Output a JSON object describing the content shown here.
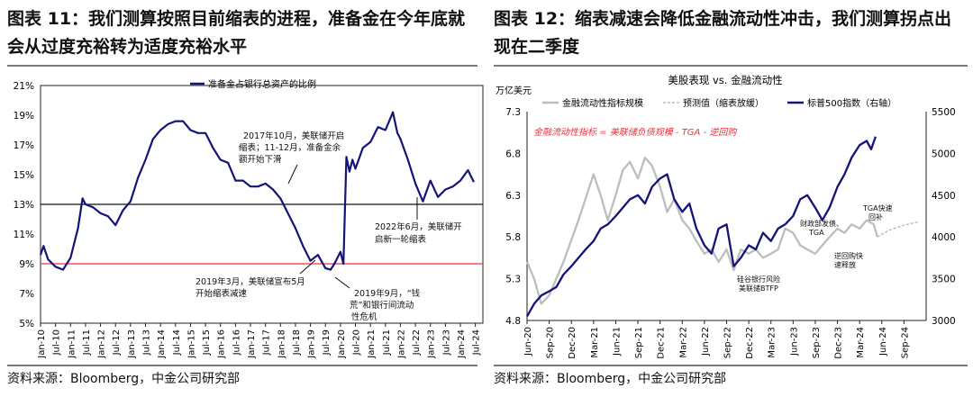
{
  "colors": {
    "navy": "#141478",
    "gray": "#bdbdbd",
    "red": "#e8343c",
    "black": "#111111"
  },
  "left": {
    "title": "图表 11：我们测算按照目前缩表的进程，准备金在今年底就会从过度充裕转为适度充裕水平",
    "source": "资料来源：Bloomberg，中金公司研究部",
    "chart_data": {
      "type": "line",
      "legend": "准备金占银行总资产的比例",
      "legend_position": "top-center",
      "ylim": [
        5,
        21
      ],
      "y_ticks": [
        "5%",
        "7%",
        "9%",
        "11%",
        "13%",
        "15%",
        "17%",
        "19%",
        "21%"
      ],
      "x_ticks": [
        "Jan-10",
        "Jul-10",
        "Jan-11",
        "Jul-11",
        "Jan-12",
        "Jul-12",
        "Jan-13",
        "Jul-13",
        "Jan-14",
        "Jul-14",
        "Jan-15",
        "Jul-15",
        "Jan-16",
        "Jul-16",
        "Jan-17",
        "Jul-17",
        "Jan-18",
        "Jul-18",
        "Jan-19",
        "Jul-19",
        "Jan-20",
        "Jul-20",
        "Jan-21",
        "Jul-21",
        "Jan-22",
        "Jul-22",
        "Jan-23",
        "Jul-23",
        "Jan-24",
        "Jul-24"
      ],
      "reference_lines": [
        {
          "y": 13,
          "color": "#111111"
        },
        {
          "y": 9,
          "color": "#e8343c"
        }
      ],
      "series": [
        {
          "name": "准备金占银行总资产的比例",
          "x": [
            2010.0,
            2010.1,
            2010.25,
            2010.5,
            2010.75,
            2011.0,
            2011.25,
            2011.4,
            2011.5,
            2011.75,
            2012.0,
            2012.25,
            2012.5,
            2012.75,
            2013.0,
            2013.25,
            2013.5,
            2013.75,
            2014.0,
            2014.25,
            2014.5,
            2014.75,
            2015.0,
            2015.25,
            2015.5,
            2015.75,
            2016.0,
            2016.25,
            2016.5,
            2016.75,
            2017.0,
            2017.25,
            2017.5,
            2017.75,
            2018.0,
            2018.25,
            2018.5,
            2018.75,
            2019.0,
            2019.25,
            2019.5,
            2019.67,
            2019.8,
            2020.0,
            2020.1,
            2020.2,
            2020.3,
            2020.4,
            2020.5,
            2020.75,
            2021.0,
            2021.25,
            2021.5,
            2021.75,
            2021.9,
            2022.0,
            2022.25,
            2022.5,
            2022.75,
            2023.0,
            2023.25,
            2023.5,
            2023.75,
            2024.0,
            2024.25,
            2024.45
          ],
          "values": [
            9.6,
            10.2,
            9.3,
            8.8,
            8.6,
            9.4,
            11.4,
            13.4,
            13.0,
            12.8,
            12.4,
            12.2,
            11.6,
            12.6,
            13.2,
            14.8,
            16.0,
            17.4,
            18.0,
            18.4,
            18.6,
            18.6,
            18.0,
            17.8,
            17.8,
            16.8,
            16.0,
            15.8,
            14.6,
            14.6,
            14.2,
            14.2,
            14.4,
            14.0,
            13.4,
            12.4,
            11.4,
            10.2,
            9.2,
            9.6,
            8.7,
            8.6,
            9.0,
            9.8,
            9.0,
            16.2,
            15.2,
            16.0,
            15.4,
            16.8,
            17.2,
            18.2,
            18.0,
            19.2,
            17.8,
            17.4,
            16.0,
            14.4,
            13.2,
            14.6,
            13.5,
            14.0,
            14.2,
            14.6,
            15.3,
            14.5
          ]
        }
      ],
      "annotations": [
        {
          "lines": [
            "2017年10月，美联储开启",
            "缩表；11-12月，准备金余",
            "额开始下滑"
          ]
        },
        {
          "lines": [
            "2022年6月，美联储开",
            "启新一轮缩表"
          ]
        },
        {
          "lines": [
            "2019年3月，美联储宣布5月",
            "开始缩表减速"
          ]
        },
        {
          "lines": [
            "2019年9月，“钱",
            "荒”和银行间流动",
            "性危机"
          ]
        }
      ]
    }
  },
  "right": {
    "title": "图表 12：缩表减速会降低金融流动性冲击，我们测算拐点出现在二季度",
    "source": "资料来源：Bloomberg，中金公司研究部",
    "chart_data": {
      "type": "line",
      "title": "美股表现 vs. 金融流动性",
      "ylabel": "万亿美元",
      "ylim": [
        4.8,
        7.3
      ],
      "y2lim": [
        3000,
        5500
      ],
      "y_ticks": [
        "4.8",
        "5.3",
        "5.8",
        "6.3",
        "6.8",
        "7.3"
      ],
      "y2_ticks": [
        "3000",
        "3500",
        "4000",
        "4500",
        "5000",
        "5500"
      ],
      "x_ticks": [
        "Jun-20",
        "Sep-20",
        "Dec-20",
        "Mar-21",
        "Jun-21",
        "Sep-21",
        "Dec-21",
        "Mar-22",
        "Jun-22",
        "Sep-22",
        "Dec-22",
        "Mar-23",
        "Jun-23",
        "Sep-23",
        "Dec-23",
        "Mar-24",
        "Jun-24",
        "Sep-24"
      ],
      "legend_position": "top",
      "formula": "金融流动性指标 = 美联储负债规模 - TGA - 逆回购",
      "series": [
        {
          "name": "金融流动性指标规模",
          "axis": "left",
          "color": "#bdbdbd",
          "x": [
            2020.42,
            2020.5,
            2020.58,
            2020.67,
            2020.75,
            2020.83,
            2021.0,
            2021.17,
            2021.25,
            2021.33,
            2021.42,
            2021.5,
            2021.58,
            2021.67,
            2021.75,
            2021.83,
            2021.92,
            2022.0,
            2022.08,
            2022.17,
            2022.25,
            2022.33,
            2022.42,
            2022.5,
            2022.58,
            2022.67,
            2022.75,
            2022.83,
            2022.92,
            2023.0,
            2023.08,
            2023.17,
            2023.25,
            2023.33,
            2023.42,
            2023.5,
            2023.58,
            2023.67,
            2023.75,
            2023.83,
            2023.92,
            2024.0,
            2024.08,
            2024.17,
            2024.25,
            2024.33,
            2024.37
          ],
          "values": [
            5.5,
            5.3,
            5.0,
            5.1,
            5.3,
            5.5,
            6.0,
            6.55,
            6.3,
            6.0,
            6.3,
            6.6,
            6.7,
            6.5,
            6.75,
            6.65,
            6.4,
            6.1,
            6.25,
            6.0,
            5.9,
            5.75,
            5.6,
            5.65,
            5.5,
            5.65,
            5.4,
            5.65,
            5.6,
            5.65,
            5.55,
            5.6,
            5.65,
            5.9,
            5.85,
            5.7,
            5.65,
            5.6,
            5.7,
            5.8,
            5.9,
            5.85,
            5.95,
            5.9,
            6.0,
            5.95,
            5.8
          ]
        },
        {
          "name": "预测值（缩表放缓）",
          "axis": "left",
          "color": "#bdbdbd",
          "dashed": true,
          "x": [
            2024.37,
            2024.5,
            2024.67,
            2024.83
          ],
          "values": [
            5.8,
            5.88,
            5.94,
            5.98
          ]
        },
        {
          "name": "标普500指数（右轴）",
          "axis": "right",
          "color": "#141478",
          "x": [
            2020.42,
            2020.5,
            2020.58,
            2020.67,
            2020.75,
            2020.83,
            2020.92,
            2021.0,
            2021.08,
            2021.17,
            2021.25,
            2021.33,
            2021.42,
            2021.5,
            2021.58,
            2021.67,
            2021.75,
            2021.83,
            2021.92,
            2022.0,
            2022.08,
            2022.17,
            2022.25,
            2022.33,
            2022.42,
            2022.5,
            2022.58,
            2022.67,
            2022.75,
            2022.83,
            2022.92,
            2023.0,
            2023.08,
            2023.17,
            2023.25,
            2023.33,
            2023.42,
            2023.5,
            2023.58,
            2023.67,
            2023.75,
            2023.83,
            2023.92,
            2024.0,
            2024.08,
            2024.17,
            2024.25,
            2024.3,
            2024.35
          ],
          "values": [
            3050,
            3200,
            3300,
            3350,
            3400,
            3550,
            3650,
            3750,
            3850,
            3950,
            4100,
            4150,
            4250,
            4350,
            4450,
            4500,
            4400,
            4600,
            4700,
            4750,
            4450,
            4300,
            4400,
            4100,
            3900,
            3800,
            4100,
            4150,
            3650,
            3750,
            3900,
            3850,
            4050,
            3950,
            4100,
            4150,
            4250,
            4450,
            4500,
            4350,
            4200,
            4350,
            4600,
            4750,
            4950,
            5100,
            5150,
            5050,
            5200
          ]
        }
      ],
      "annotations": [
        {
          "lines": [
            "TGA快速",
            "回补"
          ]
        },
        {
          "lines": [
            "财政部发债、",
            "TGA"
          ]
        },
        {
          "lines": [
            "逆回购快",
            "速释放"
          ]
        },
        {
          "lines": [
            "硅谷银行风险",
            "美联储BTFP"
          ]
        }
      ]
    }
  }
}
